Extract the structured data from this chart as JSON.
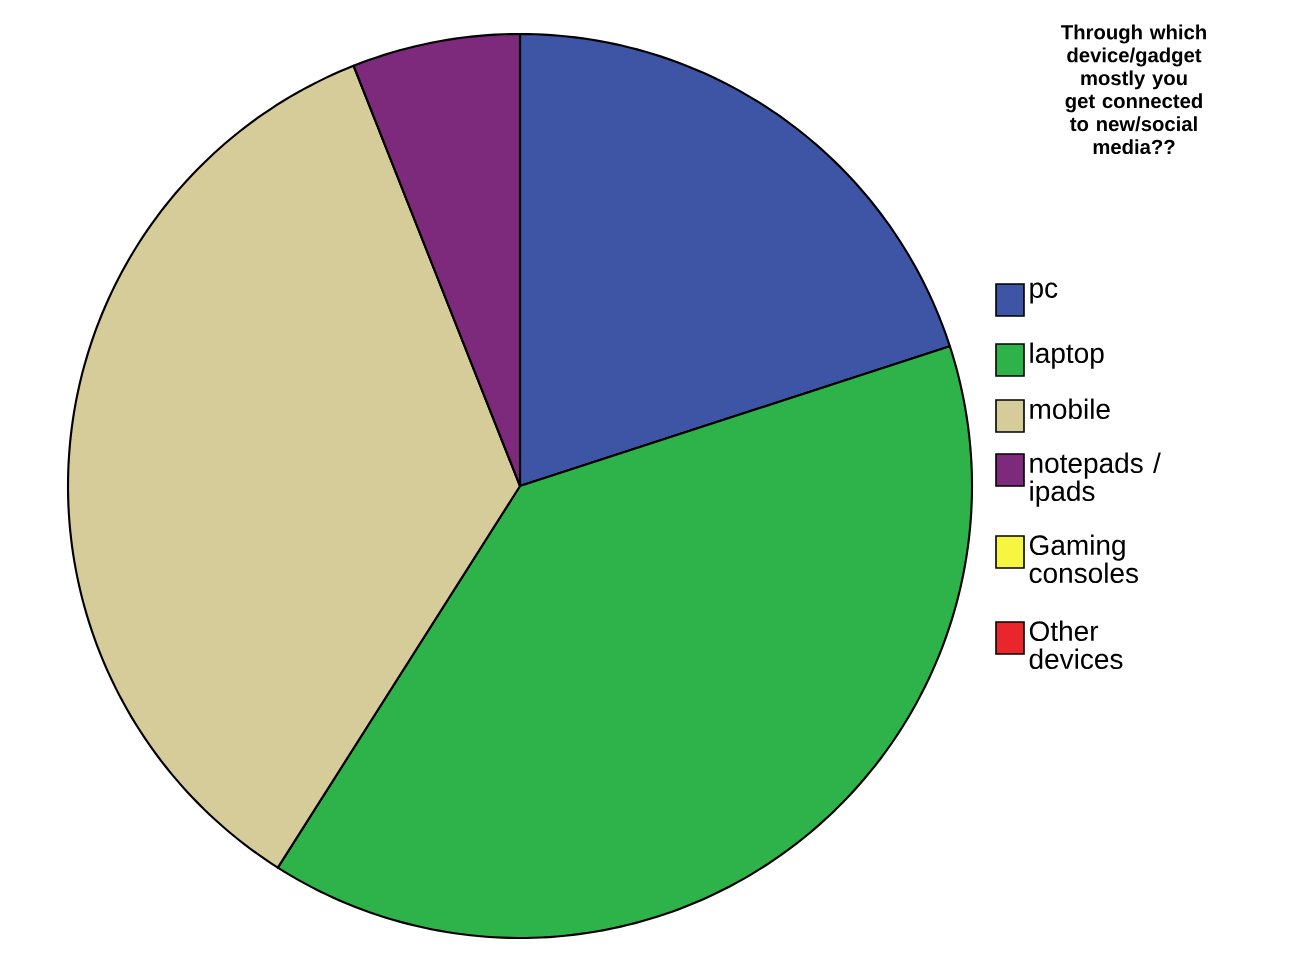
{
  "chart_data": {
    "type": "pie",
    "legend_title": "Through which device/gadget mostly you get connected to new/social media??",
    "categories": [
      "pc",
      "laptop",
      "mobile",
      "notepads / ipads",
      "Gaming consoles",
      "Other devices"
    ],
    "values": [
      20,
      39,
      35,
      6,
      0,
      0
    ],
    "colors": [
      "#3e55a6",
      "#2db34a",
      "#d5cc99",
      "#7d2a7c",
      "#f5f542",
      "#e8262b"
    ],
    "legend": "right"
  }
}
